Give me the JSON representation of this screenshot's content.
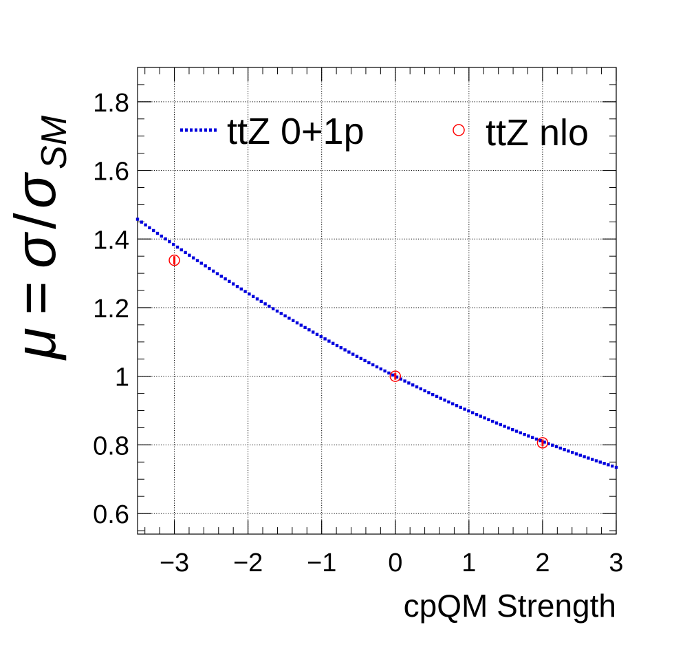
{
  "chart_data": {
    "type": "line",
    "xlabel": "cpQM Strength",
    "ylabel": {
      "mu": "μ",
      "eq": "=",
      "sigma": "σ",
      "slash": "/",
      "sigma_sm": "σ",
      "sub": "SM"
    },
    "xlim": [
      -3.5,
      3.0
    ],
    "ylim": [
      0.54,
      1.9
    ],
    "xticks": [
      -3,
      -2,
      -1,
      0,
      1,
      2,
      3
    ],
    "xtick_labels": [
      "−3",
      "−2",
      "−1",
      "0",
      "1",
      "2",
      "3"
    ],
    "yticks": [
      0.6,
      0.8,
      1.0,
      1.2,
      1.4,
      1.6,
      1.8
    ],
    "ytick_labels": [
      "0.6",
      "0.8",
      "1",
      "1.2",
      "1.4",
      "1.6",
      "1.8"
    ],
    "grid": true,
    "legend": {
      "placement": "top",
      "entries": [
        "ttZ 0+1p",
        "ttZ nlo"
      ]
    },
    "series": [
      {
        "name": "ttZ 0+1p",
        "style": "dotted-line",
        "color": "#0000dd",
        "model": {
          "a": 1.0,
          "b": -0.108,
          "c": 0.0065
        }
      },
      {
        "name": "ttZ nlo",
        "style": "open-circle-markers",
        "color": "#ff0000",
        "x": [
          -3,
          0,
          2
        ],
        "y": [
          1.338,
          1.0,
          0.806
        ],
        "yerr": [
          0.012,
          0.01,
          0.01
        ]
      }
    ]
  }
}
